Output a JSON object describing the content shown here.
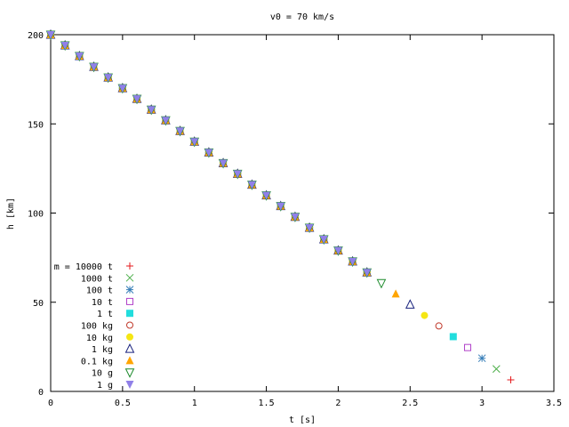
{
  "chart_data": {
    "type": "scatter",
    "title": "v0 = 70 km/s",
    "xlabel": "t [s]",
    "ylabel": "h [km]",
    "xlim": [
      0,
      3.5
    ],
    "ylim": [
      0,
      200
    ],
    "xticks": [
      {
        "v": 0,
        "label": "0"
      },
      {
        "v": 0.5,
        "label": "0.5"
      },
      {
        "v": 1,
        "label": "1"
      },
      {
        "v": 1.5,
        "label": "1.5"
      },
      {
        "v": 2,
        "label": "2"
      },
      {
        "v": 2.5,
        "label": "2.5"
      },
      {
        "v": 3,
        "label": "3"
      },
      {
        "v": 3.5,
        "label": "3.5"
      }
    ],
    "yticks": [
      {
        "v": 0,
        "label": "0"
      },
      {
        "v": 50,
        "label": "50"
      },
      {
        "v": 100,
        "label": "100"
      },
      {
        "v": 150,
        "label": "150"
      },
      {
        "v": 200,
        "label": "200"
      }
    ],
    "grid": false,
    "legend_position": "bottom-left",
    "series": [
      {
        "name": "m = 10000 t",
        "marker": "plus",
        "color": "#e41a1c",
        "t_end": 3.2,
        "h_end": 6.5
      },
      {
        "name": "1000 t",
        "marker": "cross",
        "color": "#4daf4a",
        "t_end": 3.1,
        "h_end": 12.6
      },
      {
        "name": "100 t",
        "marker": "star",
        "color": "#377eb8",
        "t_end": 3.0,
        "h_end": 18.6
      },
      {
        "name": "10 t",
        "marker": "square-open",
        "color": "#b040c8",
        "t_end": 2.9,
        "h_end": 24.6
      },
      {
        "name": "1 t",
        "marker": "square-filled",
        "color": "#22dddd",
        "t_end": 2.8,
        "h_end": 30.7
      },
      {
        "name": "100 kg",
        "marker": "circle-open",
        "color": "#c0392b",
        "t_end": 2.7,
        "h_end": 36.7
      },
      {
        "name": "10 kg",
        "marker": "circle-filled",
        "color": "#f5e614",
        "t_end": 2.6,
        "h_end": 42.6
      },
      {
        "name": "1 kg",
        "marker": "triangle-open",
        "color": "#1a237e",
        "t_end": 2.5,
        "h_end": 48.7
      },
      {
        "name": "0.1 kg",
        "marker": "triangle-filled",
        "color": "#ffa500",
        "t_end": 2.4,
        "h_end": 54.7
      },
      {
        "name": "10 g",
        "marker": "tri-down-open",
        "color": "#1b8a2a",
        "t_end": 2.3,
        "h_end": 60.7
      },
      {
        "name": "1 g",
        "marker": "tri-down-filled",
        "color": "#9080e8",
        "t_end": 2.2,
        "h_end": 66.7
      }
    ],
    "common_curve": {
      "t": [
        0,
        0.1,
        0.2,
        0.3,
        0.4,
        0.5,
        0.6,
        0.7,
        0.8,
        0.9,
        1.0,
        1.1,
        1.2,
        1.3,
        1.4,
        1.5,
        1.6,
        1.7,
        1.8,
        1.9,
        2.0,
        2.1,
        2.2
      ],
      "h": [
        200,
        194,
        188,
        182,
        176,
        170,
        164,
        158,
        152,
        146,
        140,
        134,
        128,
        122,
        115.9,
        109.9,
        103.9,
        97.9,
        91.8,
        85.3,
        79.0,
        72.9,
        66.7
      ]
    }
  }
}
